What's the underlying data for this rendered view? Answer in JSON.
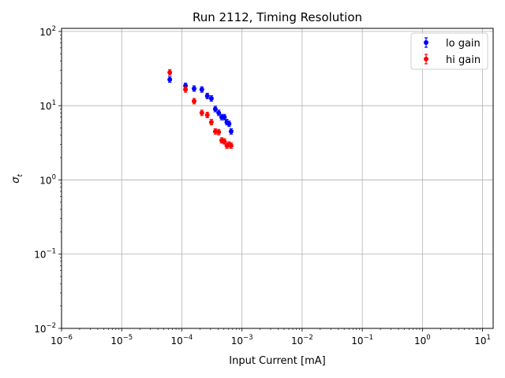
{
  "chart_data": {
    "type": "scatter",
    "title": "Run 2112, Timing Resolution",
    "xlabel": "Input Current [mA]",
    "ylabel": "σ",
    "ylabel_subscript": "t",
    "xscale": "log",
    "yscale": "log",
    "xlim": [
      1e-06,
      15
    ],
    "ylim": [
      0.01,
      110
    ],
    "x_ticks": [
      {
        "value": 1e-06,
        "base": "10",
        "exp": "−6"
      },
      {
        "value": 1e-05,
        "base": "10",
        "exp": "−5"
      },
      {
        "value": 0.0001,
        "base": "10",
        "exp": "−4"
      },
      {
        "value": 0.001,
        "base": "10",
        "exp": "−3"
      },
      {
        "value": 0.01,
        "base": "10",
        "exp": "−2"
      },
      {
        "value": 0.1,
        "base": "10",
        "exp": "−1"
      },
      {
        "value": 1,
        "base": "10",
        "exp": "0"
      },
      {
        "value": 10,
        "base": "10",
        "exp": "1"
      }
    ],
    "y_ticks": [
      {
        "value": 0.01,
        "base": "10",
        "exp": "−2"
      },
      {
        "value": 0.1,
        "base": "10",
        "exp": "−1"
      },
      {
        "value": 1,
        "base": "10",
        "exp": "0"
      },
      {
        "value": 10,
        "base": "10",
        "exp": "1"
      },
      {
        "value": 100,
        "base": "10",
        "exp": "2"
      }
    ],
    "grid": true,
    "legend_position": "top-right",
    "series": [
      {
        "name": "lo gain",
        "color": "#0000ff",
        "x": [
          6.3e-05,
          0.000115,
          0.00016,
          0.000215,
          0.000265,
          0.00031,
          0.00036,
          0.00041,
          0.00046,
          0.00051,
          0.00056,
          0.00061,
          0.00066
        ],
        "y": [
          22.5,
          18.5,
          17.0,
          16.5,
          13.5,
          12.5,
          9.0,
          8.0,
          7.0,
          7.0,
          6.0,
          5.7,
          4.5
        ]
      },
      {
        "name": "hi gain",
        "color": "#ff0000",
        "x": [
          6.3e-05,
          0.000115,
          0.00016,
          0.000215,
          0.000265,
          0.00031,
          0.00036,
          0.00041,
          0.00046,
          0.00051,
          0.00056,
          0.00061,
          0.00066
        ],
        "y": [
          28.0,
          16.5,
          11.5,
          8.0,
          7.5,
          6.0,
          4.5,
          4.4,
          3.4,
          3.3,
          2.9,
          3.0,
          2.9
        ]
      }
    ]
  }
}
